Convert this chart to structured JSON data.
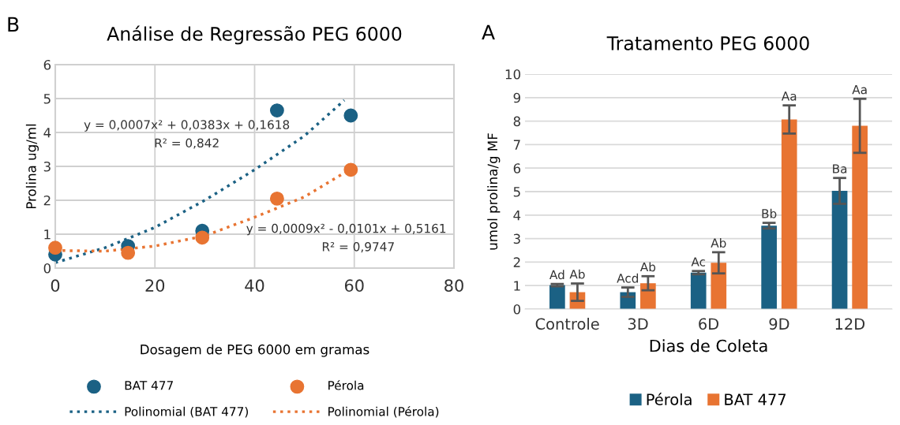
{
  "chart_data": [
    {
      "type": "scatter",
      "title": "Análise de Regressão PEG 6000",
      "xlabel": "Dosagem de PEG 6000 em gramas",
      "ylabel": "Prolina ug/ml",
      "xlim": [
        0,
        80
      ],
      "xticks": [
        0,
        20,
        40,
        60,
        80
      ],
      "ylim": [
        0,
        6
      ],
      "yticks": [
        0,
        1,
        2,
        3,
        4,
        5,
        6
      ],
      "grid": true,
      "legend": "bottom",
      "series": [
        {
          "name": "BAT 477",
          "color": "#1b6184",
          "marker": "circle",
          "x": [
            0,
            14.6,
            29.5,
            44.5,
            59.3
          ],
          "values": [
            0.4,
            0.65,
            1.1,
            4.65,
            4.5
          ]
        },
        {
          "name": "Pérola",
          "color": "#e87432",
          "marker": "circle",
          "x": [
            0,
            14.6,
            29.5,
            44.5,
            59.3
          ],
          "values": [
            0.6,
            0.45,
            0.9,
            2.05,
            2.9
          ]
        },
        {
          "name": "Polinomial (BAT 477)",
          "type": "line",
          "line_style": "dotted",
          "color": "#1b6184",
          "x": [
            0,
            10,
            20,
            30,
            40,
            50,
            58
          ],
          "values": [
            0.16,
            0.6,
            1.2,
            2.0,
            2.9,
            3.9,
            4.95
          ]
        },
        {
          "name": "Polinomial (Pérola)",
          "type": "line",
          "line_style": "dotted",
          "color": "#e87432",
          "x": [
            0,
            10,
            20,
            30,
            40,
            50,
            59
          ],
          "values": [
            0.52,
            0.5,
            0.65,
            0.95,
            1.5,
            2.1,
            2.9
          ]
        }
      ],
      "annotations": [
        "B",
        "y = 0,0007x² + 0,0383x + 0,1618",
        "R² = 0,842",
        "y = 0,0009x² - 0,0101x + 0,5161",
        "R² = 0,9747"
      ]
    },
    {
      "type": "bar",
      "title": "Tratamento PEG 6000",
      "xlabel": "Dias de Coleta",
      "ylabel": "umol prolina/g MF",
      "categories": [
        "Controle",
        "3D",
        "6D",
        "9D",
        "12D"
      ],
      "ylim": [
        0,
        10
      ],
      "yticks": [
        0,
        1,
        2,
        3,
        4,
        5,
        6,
        7,
        8,
        9,
        10
      ],
      "grid": "y",
      "legend": "bottom",
      "series": [
        {
          "name": "Pérola",
          "color": "#1b6184",
          "values": [
            1.02,
            0.72,
            1.55,
            3.55,
            5.03
          ],
          "errors": [
            0.05,
            0.2,
            0.07,
            0.12,
            0.55
          ],
          "value_labels": [
            "Ad",
            "Acd",
            "Ac",
            "Bb",
            "Ba"
          ]
        },
        {
          "name": "BAT 477",
          "color": "#e87432",
          "values": [
            0.72,
            1.1,
            1.97,
            8.07,
            7.8
          ],
          "errors": [
            0.37,
            0.3,
            0.45,
            0.6,
            1.15
          ],
          "value_labels": [
            "Ab",
            "Ab",
            "Ab",
            "Aa",
            "Aa"
          ]
        }
      ],
      "annotations": [
        "A"
      ]
    }
  ]
}
